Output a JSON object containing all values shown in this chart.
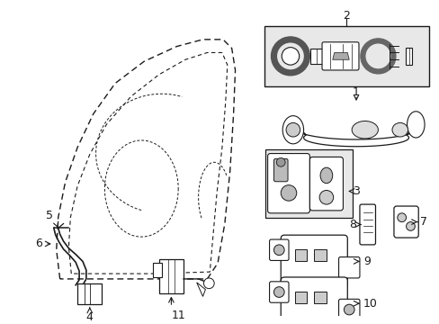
{
  "bg_color": "#ffffff",
  "line_color": "#1a1a1a",
  "gray_fill": "#d8d8d8",
  "light_gray": "#e8e8e8",
  "mid_gray": "#aaaaaa"
}
